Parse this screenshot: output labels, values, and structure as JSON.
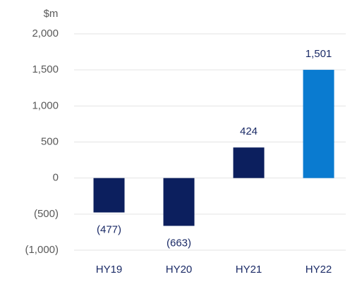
{
  "chart_data": {
    "type": "bar",
    "y_label": "$m",
    "categories": [
      "HY19",
      "HY20",
      "HY21",
      "HY22"
    ],
    "values": [
      -477,
      -663,
      424,
      1501
    ],
    "value_labels": [
      "(477)",
      "(663)",
      "424",
      "1,501"
    ],
    "colors": [
      "#0c1f5e",
      "#0c1f5e",
      "#0c1f5e",
      "#0a7bd0"
    ],
    "ylim": [
      -1000,
      2000
    ],
    "yticks": [
      {
        "value": -1000,
        "label": "(1,000)"
      },
      {
        "value": -500,
        "label": "(500)"
      },
      0,
      500,
      {
        "value": 1000,
        "label": "1,000"
      },
      {
        "value": 1500,
        "label": "1,500"
      },
      {
        "value": 2000,
        "label": "2,000"
      }
    ],
    "grid": true
  }
}
